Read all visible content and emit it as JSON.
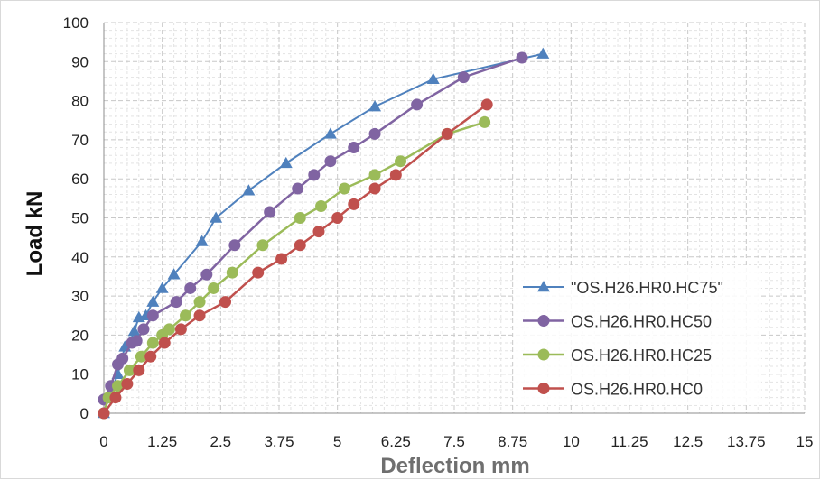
{
  "chart_data": {
    "type": "line",
    "title": "",
    "xlabel": "Deflection mm",
    "ylabel": "Load kN",
    "xlim": [
      0,
      15
    ],
    "ylim": [
      0,
      100
    ],
    "x_ticks": [
      "0",
      "1.25",
      "2.5",
      "3.75",
      "5",
      "6.25",
      "7.5",
      "8.75",
      "10",
      "11.25",
      "12.5",
      "13.75",
      "15"
    ],
    "y_ticks": [
      "0",
      "10",
      "20",
      "30",
      "40",
      "50",
      "60",
      "70",
      "80",
      "90",
      "100"
    ],
    "x_tick_values": [
      0,
      1.25,
      2.5,
      3.75,
      5,
      6.25,
      7.5,
      8.75,
      10,
      11.25,
      12.5,
      13.75,
      15
    ],
    "y_tick_values": [
      0,
      10,
      20,
      30,
      40,
      50,
      60,
      70,
      80,
      90,
      100
    ],
    "grid": "major and minor, dashed",
    "legend_position": "bottom-right",
    "series": [
      {
        "name": "\"OS.H26.HR0.HC75\"",
        "color": "#4f81bd",
        "marker": "triangle",
        "x": [
          0,
          0.1,
          0.3,
          0.45,
          0.55,
          0.65,
          0.75,
          0.9,
          1.05,
          1.25,
          1.5,
          2.1,
          2.4,
          3.1,
          3.9,
          4.85,
          5.8,
          7.05,
          9.4
        ],
        "y": [
          0,
          4,
          10,
          17,
          18,
          21,
          24.5,
          25,
          28.5,
          32,
          35.5,
          44,
          50,
          57,
          64,
          71.5,
          78.5,
          85.5,
          92
        ]
      },
      {
        "name": "OS.H26.HR0.HC50",
        "color": "#8064a2",
        "marker": "circle",
        "x": [
          0,
          0.15,
          0.3,
          0.4,
          0.6,
          0.7,
          0.85,
          1.05,
          1.55,
          1.85,
          2.2,
          2.8,
          3.55,
          4.15,
          4.5,
          4.85,
          5.35,
          5.8,
          6.7,
          7.7,
          8.95
        ],
        "y": [
          3.5,
          7,
          12.5,
          14,
          18,
          18.5,
          21.5,
          25,
          28.5,
          32,
          35.5,
          43,
          51.5,
          57.5,
          61,
          64.5,
          68,
          71.5,
          79,
          86,
          91
        ]
      },
      {
        "name": "OS.H26.HR0.HC25",
        "color": "#9bbb59",
        "marker": "circle",
        "x": [
          0,
          0.1,
          0.3,
          0.55,
          0.8,
          1.05,
          1.25,
          1.4,
          1.75,
          2.05,
          2.35,
          2.75,
          3.4,
          4.2,
          4.65,
          5.15,
          5.8,
          6.35,
          7.35,
          8.15
        ],
        "y": [
          0,
          4,
          7,
          11,
          14.5,
          18,
          20,
          21.5,
          25,
          28.5,
          32,
          36,
          43,
          50,
          53,
          57.5,
          61,
          64.5,
          71.5,
          74.5
        ]
      },
      {
        "name": "OS.H26.HR0.HC0",
        "color": "#c0504d",
        "marker": "circle",
        "x": [
          0,
          0.25,
          0.5,
          0.75,
          1.0,
          1.3,
          1.65,
          2.05,
          2.6,
          3.3,
          3.8,
          4.2,
          4.6,
          5.0,
          5.35,
          5.8,
          6.25,
          7.35,
          8.2
        ],
        "y": [
          0,
          4,
          7.5,
          11,
          14.5,
          18,
          21.5,
          25,
          28.5,
          36,
          39.5,
          43,
          46.5,
          50,
          53.5,
          57.5,
          61,
          71.5,
          79
        ]
      }
    ]
  }
}
